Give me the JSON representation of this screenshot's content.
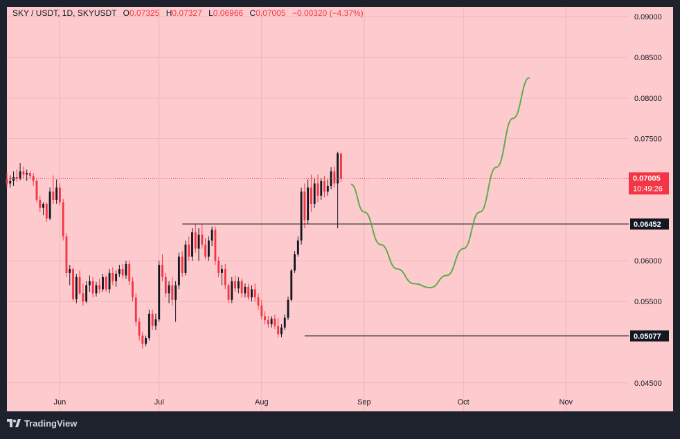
{
  "header": {
    "symbol": "SKY / USDT, 1D, SKYUSDT",
    "open_label": "O",
    "open": "0.07325",
    "high_label": "H",
    "high": "0.07327",
    "low_label": "L",
    "low": "0.06966",
    "close_label": "C",
    "close": "0.07005",
    "change": "−0.00320 (−4.37%)"
  },
  "price_badge": {
    "price": "0.07005",
    "countdown": "10:49:26",
    "color": "#f23645"
  },
  "levels": [
    {
      "label": "0.06452",
      "value": 0.06452
    },
    {
      "label": "0.05077",
      "value": 0.05077
    }
  ],
  "y_axis_labels": [
    "0.09000",
    "0.08500",
    "0.08000",
    "0.07500",
    "0.06000",
    "0.05500",
    "0.04500"
  ],
  "x_axis_labels": [
    "Jun",
    "Jul",
    "Aug",
    "Sep",
    "Oct",
    "Nov"
  ],
  "footer": {
    "brand": "TradingView"
  },
  "colors": {
    "background": "#fdcbce",
    "up": "#131722",
    "down": "#f23645",
    "projection": "#5cad4a",
    "axis_text": "#131722",
    "footer_bg": "#1e222d"
  },
  "chart_data": {
    "type": "candlestick",
    "ylim": [
      0.0415,
      0.0912
    ],
    "x_start": "2024-05-16",
    "x_end": "2024-11-20",
    "grid": true,
    "candles": [
      [
        0.07,
        0.0708,
        0.069,
        0.0695
      ],
      [
        0.0695,
        0.0705,
        0.069,
        0.0698
      ],
      [
        0.0698,
        0.071,
        0.0692,
        0.0703
      ],
      [
        0.0703,
        0.0712,
        0.0697,
        0.0701
      ],
      [
        0.0701,
        0.072,
        0.0699,
        0.071
      ],
      [
        0.071,
        0.0716,
        0.0701,
        0.0706
      ],
      [
        0.0706,
        0.0712,
        0.0698,
        0.0708
      ],
      [
        0.0708,
        0.071,
        0.07,
        0.0704
      ],
      [
        0.0704,
        0.0708,
        0.0692,
        0.0698
      ],
      [
        0.0698,
        0.07,
        0.0672,
        0.0675
      ],
      [
        0.0675,
        0.068,
        0.066,
        0.0665
      ],
      [
        0.0665,
        0.0672,
        0.0656,
        0.067
      ],
      [
        0.067,
        0.0672,
        0.0648,
        0.0652
      ],
      [
        0.0652,
        0.069,
        0.065,
        0.0685
      ],
      [
        0.0685,
        0.0705,
        0.067,
        0.0675
      ],
      [
        0.0675,
        0.07,
        0.067,
        0.069
      ],
      [
        0.069,
        0.0695,
        0.0668,
        0.0672
      ],
      [
        0.0672,
        0.0676,
        0.0625,
        0.063
      ],
      [
        0.063,
        0.0634,
        0.058,
        0.0585
      ],
      [
        0.0585,
        0.0595,
        0.057,
        0.059
      ],
      [
        0.059,
        0.0592,
        0.055,
        0.0553
      ],
      [
        0.0553,
        0.0584,
        0.0548,
        0.058
      ],
      [
        0.058,
        0.0588,
        0.0558,
        0.056
      ],
      [
        0.056,
        0.0572,
        0.0545,
        0.055
      ],
      [
        0.055,
        0.0575,
        0.0548,
        0.057
      ],
      [
        0.057,
        0.0582,
        0.0562,
        0.0575
      ],
      [
        0.0575,
        0.058,
        0.0555,
        0.056
      ],
      [
        0.056,
        0.0574,
        0.0556,
        0.057
      ],
      [
        0.057,
        0.0578,
        0.056,
        0.0565
      ],
      [
        0.0565,
        0.0584,
        0.0562,
        0.058
      ],
      [
        0.058,
        0.0582,
        0.0562,
        0.0565
      ],
      [
        0.0565,
        0.059,
        0.056,
        0.0585
      ],
      [
        0.0585,
        0.0592,
        0.057,
        0.0575
      ],
      [
        0.0575,
        0.0588,
        0.0568,
        0.0584
      ],
      [
        0.0584,
        0.0595,
        0.058,
        0.059
      ],
      [
        0.059,
        0.0596,
        0.0578,
        0.0582
      ],
      [
        0.0582,
        0.06,
        0.0578,
        0.0596
      ],
      [
        0.0596,
        0.06,
        0.057,
        0.0575
      ],
      [
        0.0575,
        0.058,
        0.055,
        0.0555
      ],
      [
        0.0555,
        0.056,
        0.052,
        0.0525
      ],
      [
        0.0525,
        0.053,
        0.0502,
        0.0508
      ],
      [
        0.0508,
        0.0513,
        0.0492,
        0.0498
      ],
      [
        0.0498,
        0.0508,
        0.0495,
        0.0505
      ],
      [
        0.0505,
        0.054,
        0.0502,
        0.0535
      ],
      [
        0.0535,
        0.054,
        0.0515,
        0.052
      ],
      [
        0.052,
        0.0535,
        0.0515,
        0.0528
      ],
      [
        0.0528,
        0.06,
        0.0525,
        0.0595
      ],
      [
        0.0595,
        0.0608,
        0.0575,
        0.058
      ],
      [
        0.058,
        0.0585,
        0.0555,
        0.056
      ],
      [
        0.056,
        0.0575,
        0.0548,
        0.057
      ],
      [
        0.057,
        0.058,
        0.0545,
        0.0552
      ],
      [
        0.0552,
        0.0575,
        0.0525,
        0.057
      ],
      [
        0.057,
        0.061,
        0.0565,
        0.0605
      ],
      [
        0.0605,
        0.0612,
        0.058,
        0.0585
      ],
      [
        0.0585,
        0.0625,
        0.0582,
        0.062
      ],
      [
        0.062,
        0.063,
        0.06,
        0.0605
      ],
      [
        0.0605,
        0.064,
        0.06,
        0.0635
      ],
      [
        0.0635,
        0.0645,
        0.061,
        0.0615
      ],
      [
        0.0615,
        0.064,
        0.06,
        0.0632
      ],
      [
        0.0632,
        0.0645,
        0.0615,
        0.062
      ],
      [
        0.062,
        0.0628,
        0.0602,
        0.0605
      ],
      [
        0.0605,
        0.063,
        0.06,
        0.0625
      ],
      [
        0.0625,
        0.0642,
        0.0618,
        0.0638
      ],
      [
        0.0638,
        0.0642,
        0.0595,
        0.06
      ],
      [
        0.06,
        0.0605,
        0.058,
        0.0585
      ],
      [
        0.0585,
        0.0595,
        0.057,
        0.059
      ],
      [
        0.059,
        0.0596,
        0.0565,
        0.057
      ],
      [
        0.057,
        0.0572,
        0.0548,
        0.0552
      ],
      [
        0.0552,
        0.058,
        0.0548,
        0.0575
      ],
      [
        0.0575,
        0.0582,
        0.0562,
        0.0566
      ],
      [
        0.0566,
        0.058,
        0.056,
        0.0575
      ],
      [
        0.0575,
        0.0578,
        0.0555,
        0.056
      ],
      [
        0.056,
        0.0572,
        0.0555,
        0.0568
      ],
      [
        0.0568,
        0.0572,
        0.0552,
        0.0555
      ],
      [
        0.0555,
        0.057,
        0.055,
        0.0565
      ],
      [
        0.0565,
        0.0572,
        0.055,
        0.0555
      ],
      [
        0.0555,
        0.056,
        0.054,
        0.0545
      ],
      [
        0.0545,
        0.0552,
        0.0528,
        0.0532
      ],
      [
        0.0532,
        0.0538,
        0.0522,
        0.0527
      ],
      [
        0.0527,
        0.0532,
        0.0518,
        0.0522
      ],
      [
        0.0522,
        0.0532,
        0.0518,
        0.0529
      ],
      [
        0.0529,
        0.0534,
        0.0516,
        0.052
      ],
      [
        0.052,
        0.053,
        0.0506,
        0.051
      ],
      [
        0.051,
        0.0522,
        0.0506,
        0.0518
      ],
      [
        0.0518,
        0.0534,
        0.0515,
        0.053
      ],
      [
        0.053,
        0.0556,
        0.0527,
        0.0552
      ],
      [
        0.0552,
        0.059,
        0.055,
        0.0588
      ],
      [
        0.0588,
        0.0612,
        0.0585,
        0.0608
      ],
      [
        0.0608,
        0.063,
        0.0605,
        0.0625
      ],
      [
        0.0625,
        0.069,
        0.062,
        0.0685
      ],
      [
        0.0685,
        0.0695,
        0.064,
        0.065
      ],
      [
        0.065,
        0.07,
        0.0645,
        0.069
      ],
      [
        0.069,
        0.0706,
        0.066,
        0.067
      ],
      [
        0.067,
        0.0702,
        0.0665,
        0.0695
      ],
      [
        0.0695,
        0.0706,
        0.0672,
        0.068
      ],
      [
        0.068,
        0.0702,
        0.0675,
        0.0698
      ],
      [
        0.0698,
        0.0704,
        0.0678,
        0.0685
      ],
      [
        0.0685,
        0.07,
        0.068,
        0.0692
      ],
      [
        0.0692,
        0.0715,
        0.0688,
        0.071
      ],
      [
        0.071,
        0.0716,
        0.069,
        0.0695
      ],
      [
        0.0695,
        0.0734,
        0.064,
        0.0732
      ],
      [
        0.0732,
        0.0733,
        0.0697,
        0.0701
      ]
    ],
    "projection_curve": [
      [
        0,
        0.0694
      ],
      [
        4,
        0.066
      ],
      [
        9,
        0.062
      ],
      [
        14,
        0.059
      ],
      [
        19,
        0.0572
      ],
      [
        24,
        0.0567
      ],
      [
        29,
        0.0582
      ],
      [
        34,
        0.0615
      ],
      [
        39,
        0.066
      ],
      [
        44,
        0.0715
      ],
      [
        49,
        0.0775
      ],
      [
        54,
        0.0825
      ]
    ]
  }
}
